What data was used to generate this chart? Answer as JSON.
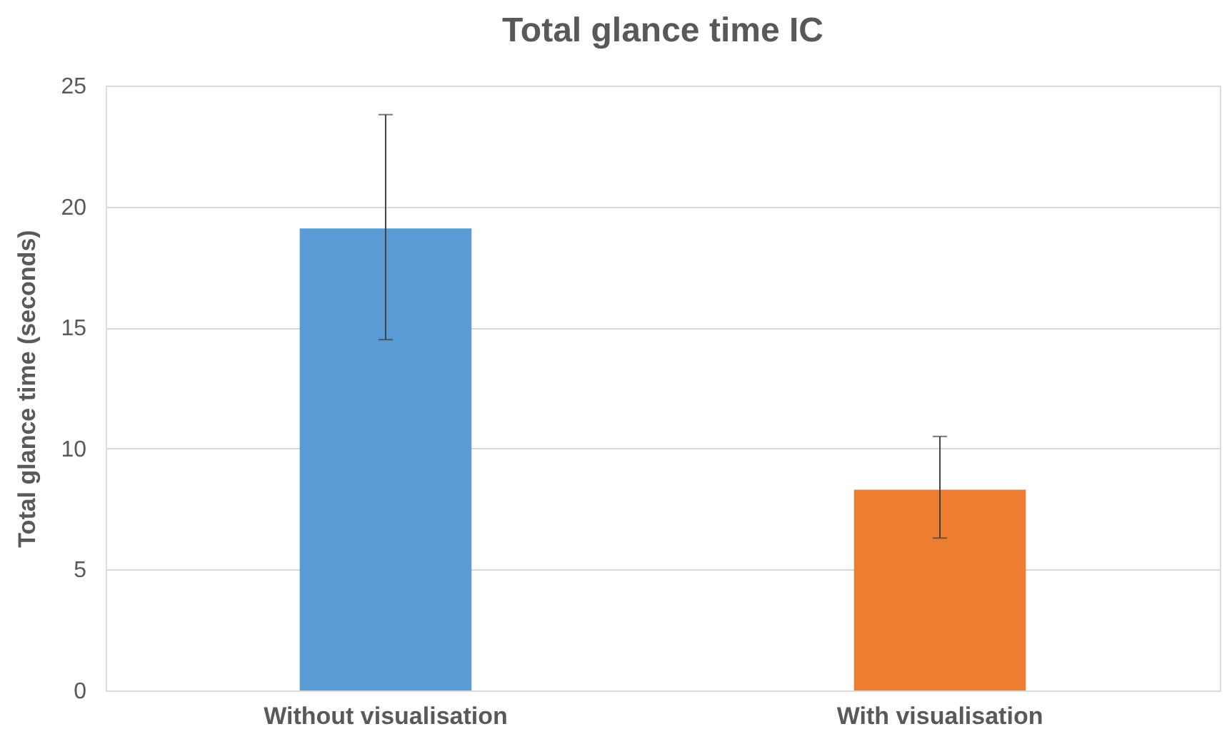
{
  "chart_data": {
    "type": "bar",
    "title": "Total glance time IC",
    "ylabel": "Total glance time (seconds)",
    "categories": [
      "Without visualisation",
      "With visualisation"
    ],
    "values": [
      19.1,
      8.3
    ],
    "colors": [
      "#5b9bd5",
      "#ed7d31"
    ],
    "errors": [
      [
        14.5,
        23.8
      ],
      [
        6.3,
        10.5
      ]
    ],
    "ylim": [
      0,
      25
    ],
    "yticks": [
      0,
      5,
      10,
      15,
      20,
      25
    ],
    "grid": "y"
  }
}
